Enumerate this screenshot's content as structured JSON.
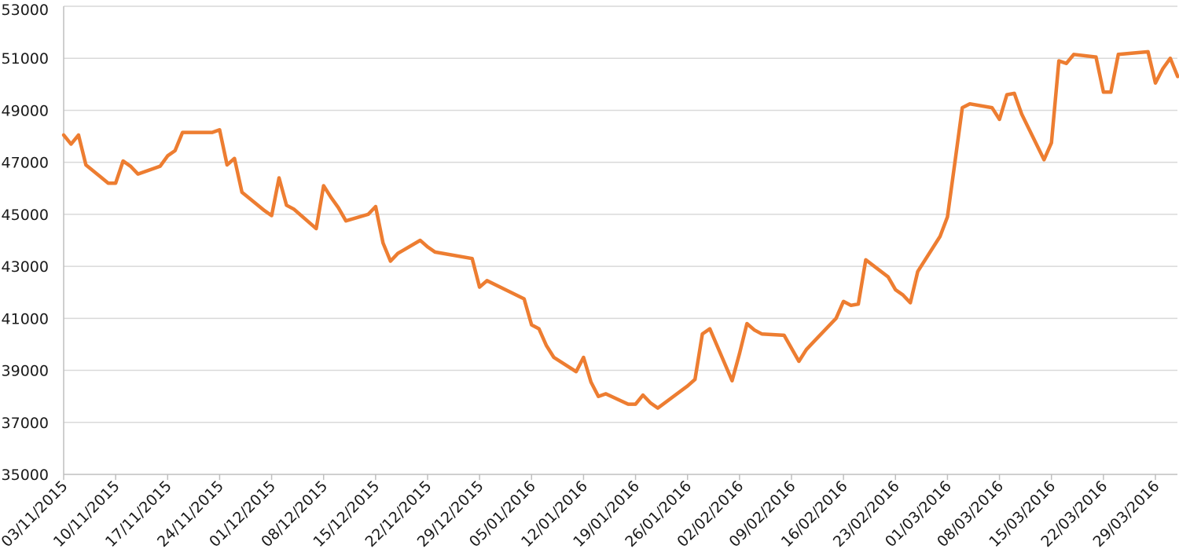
{
  "chart_data": {
    "type": "line",
    "title": "",
    "xlabel": "",
    "ylabel": "",
    "ylim": [
      35000,
      53000
    ],
    "yticks": [
      35000,
      37000,
      39000,
      41000,
      43000,
      45000,
      47000,
      49000,
      51000,
      53000
    ],
    "x_tick_labels": [
      "03/11/2015",
      "10/11/2015",
      "17/11/2015",
      "24/11/2015",
      "01/12/2015",
      "08/12/2015",
      "15/12/2015",
      "22/12/2015",
      "29/12/2015",
      "05/01/2016",
      "12/01/2016",
      "19/01/2016",
      "26/01/2016",
      "02/02/2016",
      "09/02/2016",
      "16/02/2016",
      "23/02/2016",
      "01/03/2016",
      "08/03/2016",
      "15/03/2016",
      "22/03/2016",
      "29/03/2016"
    ],
    "grid": true,
    "legend": "none",
    "colors": {
      "series": "#ed7d31",
      "grid": "#d9d9d9",
      "axis": "#bfbfbf"
    },
    "series": [
      {
        "x": [
          "2015-11-03",
          "2015-11-04",
          "2015-11-05",
          "2015-11-06",
          "2015-11-09",
          "2015-11-10",
          "2015-11-11",
          "2015-11-12",
          "2015-11-13",
          "2015-11-16",
          "2015-11-17",
          "2015-11-18",
          "2015-11-19",
          "2015-11-20",
          "2015-11-23",
          "2015-11-24",
          "2015-11-25",
          "2015-11-26",
          "2015-11-27",
          "2015-11-30",
          "2015-12-01",
          "2015-12-02",
          "2015-12-03",
          "2015-12-04",
          "2015-12-07",
          "2015-12-08",
          "2015-12-09",
          "2015-12-10",
          "2015-12-11",
          "2015-12-14",
          "2015-12-15",
          "2015-12-16",
          "2015-12-17",
          "2015-12-18",
          "2015-12-21",
          "2015-12-22",
          "2015-12-23",
          "2015-12-28",
          "2015-12-29",
          "2015-12-30",
          "2016-01-04",
          "2016-01-05",
          "2016-01-06",
          "2016-01-07",
          "2016-01-08",
          "2016-01-11",
          "2016-01-12",
          "2016-01-13",
          "2016-01-14",
          "2016-01-15",
          "2016-01-18",
          "2016-01-19",
          "2016-01-20",
          "2016-01-21",
          "2016-01-22",
          "2016-01-26",
          "2016-01-27",
          "2016-01-28",
          "2016-01-29",
          "2016-02-01",
          "2016-02-02",
          "2016-02-03",
          "2016-02-04",
          "2016-02-05",
          "2016-02-08",
          "2016-02-10",
          "2016-02-11",
          "2016-02-12",
          "2016-02-15",
          "2016-02-16",
          "2016-02-17",
          "2016-02-18",
          "2016-02-19",
          "2016-02-22",
          "2016-02-23",
          "2016-02-24",
          "2016-02-25",
          "2016-02-26",
          "2016-02-29",
          "2016-03-01",
          "2016-03-02",
          "2016-03-03",
          "2016-03-04",
          "2016-03-07",
          "2016-03-08",
          "2016-03-09",
          "2016-03-10",
          "2016-03-11",
          "2016-03-14",
          "2016-03-15",
          "2016-03-16",
          "2016-03-17",
          "2016-03-18",
          "2016-03-21",
          "2016-03-22",
          "2016-03-23",
          "2016-03-24",
          "2016-03-28",
          "2016-03-29",
          "2016-03-30",
          "2016-03-31",
          "2016-04-01"
        ],
        "y": [
          48050,
          47700,
          48050,
          46900,
          46200,
          46200,
          47050,
          46850,
          46550,
          46850,
          47250,
          47450,
          48150,
          48150,
          48150,
          48250,
          46900,
          47150,
          45850,
          45150,
          44950,
          46400,
          45350,
          45200,
          44450,
          46100,
          45650,
          45250,
          44750,
          45000,
          45300,
          43900,
          43200,
          43500,
          44000,
          43750,
          43550,
          43300,
          42200,
          42450,
          41750,
          40750,
          40600,
          39950,
          39500,
          38950,
          39500,
          38550,
          38000,
          38100,
          37700,
          37700,
          38050,
          37750,
          37550,
          38400,
          38650,
          40400,
          40600,
          38600,
          39650,
          40800,
          40550,
          40400,
          40350,
          39350,
          39800,
          40100,
          41000,
          41650,
          41500,
          41550,
          43250,
          42600,
          42100,
          41900,
          41600,
          42800,
          44150,
          44900,
          47000,
          49100,
          49250,
          49100,
          48650,
          49600,
          49650,
          48850,
          47100,
          47750,
          50900,
          50800,
          51150,
          51050,
          49700,
          49700,
          51150,
          51250,
          50050,
          50600,
          51000,
          50300
        ],
        "color": "#ed7d31"
      }
    ]
  }
}
